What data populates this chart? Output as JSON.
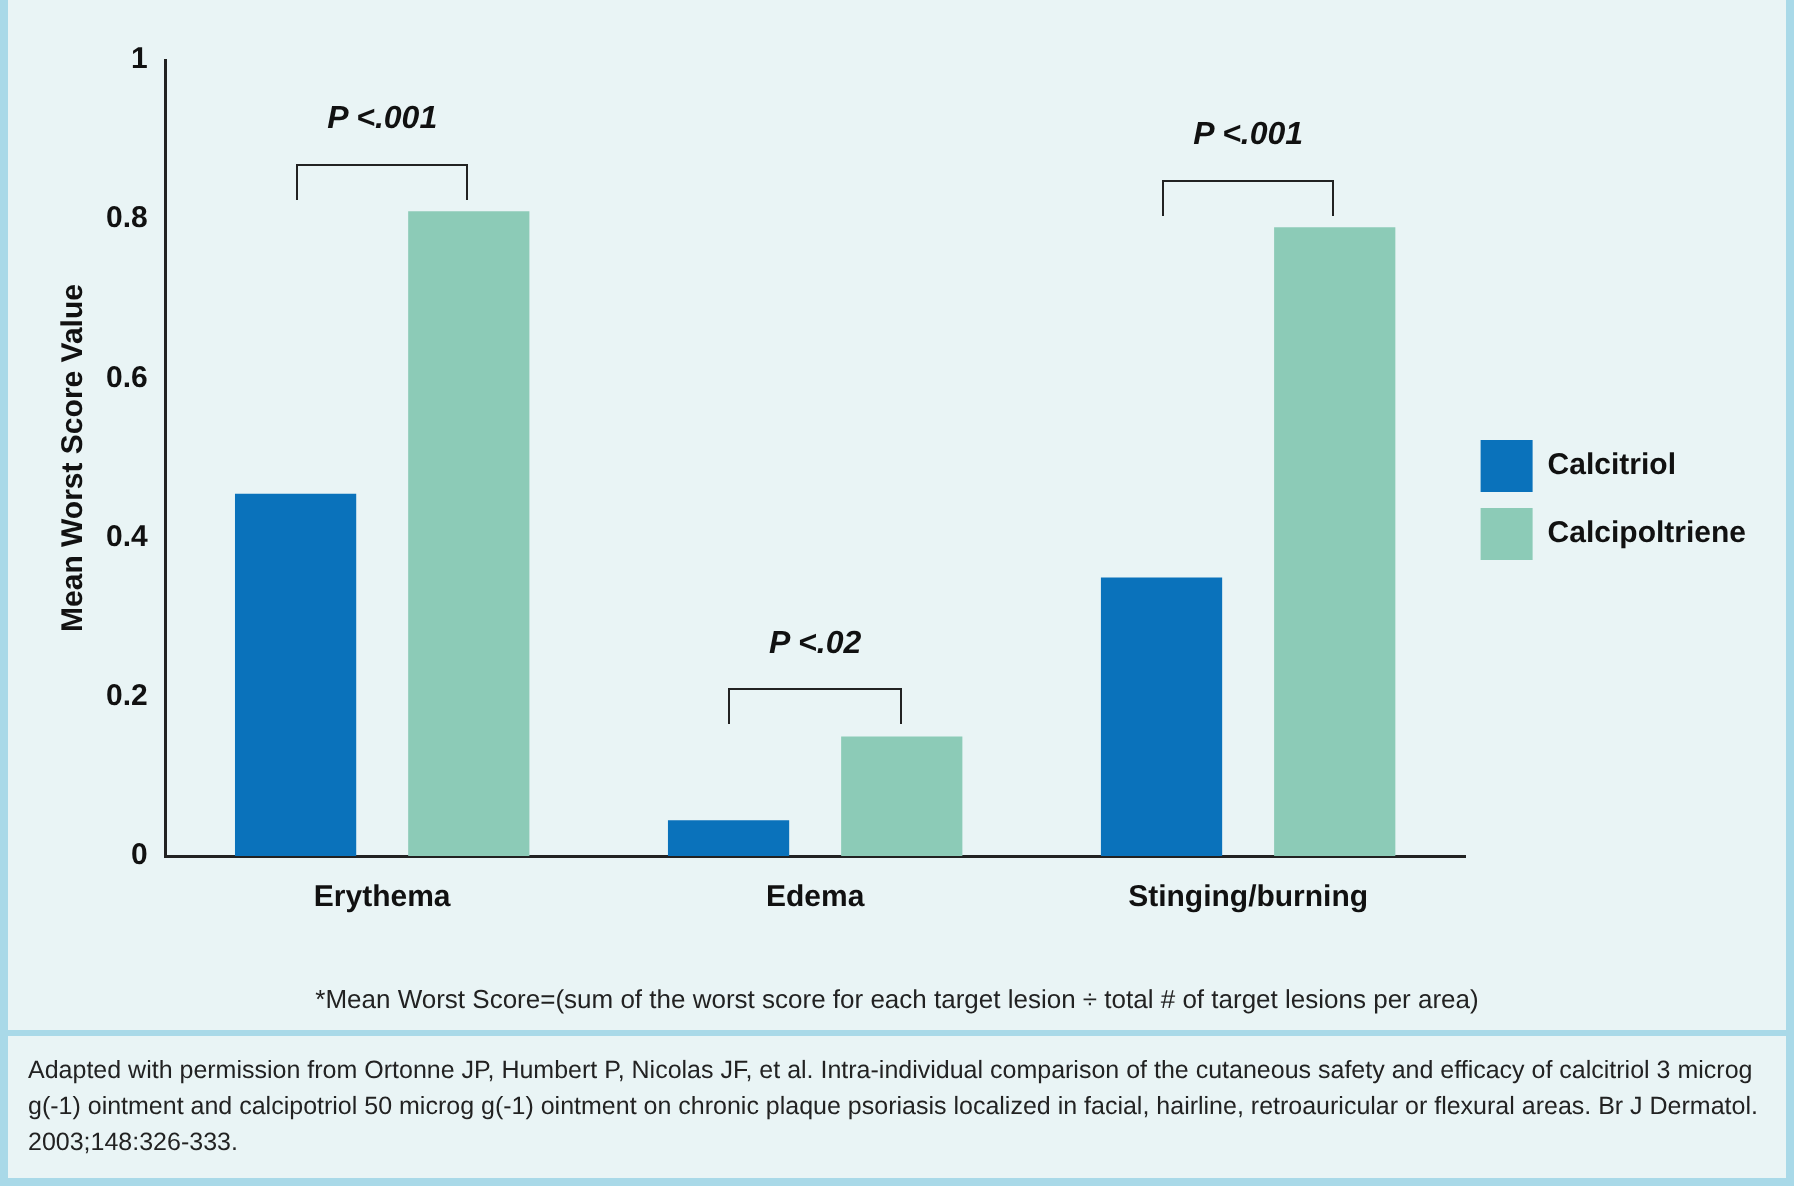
{
  "chart_data": {
    "type": "bar",
    "ylabel": "Mean Worst Score Value",
    "categories": [
      "Erythema",
      "Edema",
      "Stinging/burning"
    ],
    "series": [
      {
        "name": "Calcitriol",
        "color": "#0a72bb",
        "values": [
          0.455,
          0.045,
          0.35
        ]
      },
      {
        "name": "Calcipoltriene",
        "color": "#8ccbb7",
        "values": [
          0.81,
          0.15,
          0.79
        ]
      }
    ],
    "ylim": [
      0,
      1
    ],
    "yticks": [
      0,
      0.2,
      0.4,
      0.6,
      0.8,
      1
    ],
    "grid": false,
    "legend": "right",
    "annotations": [
      "P <.001",
      "P <.02",
      "P <.001",
      "*Mean Worst Score=(sum of the worst score for each target lesion ÷ total # of target lesions per area)",
      "Adapted with permission from Ortonne JP, Humbert P, Nicolas JF, et al. Intra-individual comparison of the cutaneous safety and efficacy of calcitriol 3 microg g(-1) ointment and calcipotriol 50 microg g(-1) ointment on chronic plaque psoriasis localized in facial, hairline, retroauricular or flexural areas. Br J Dermatol. 2003;148:326-333."
    ]
  }
}
